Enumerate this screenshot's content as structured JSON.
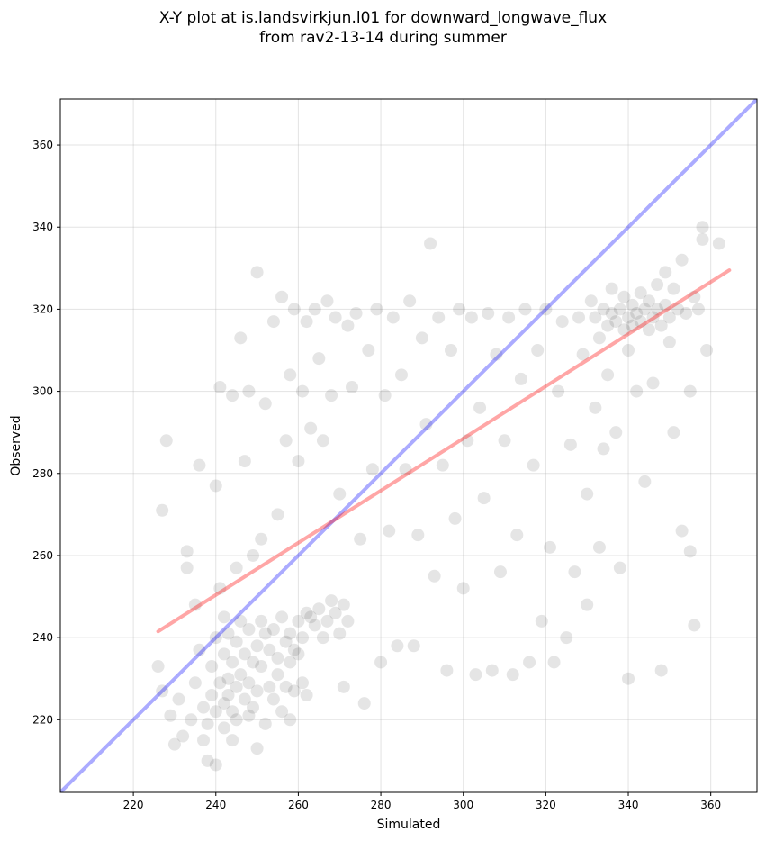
{
  "chart_data": {
    "type": "scatter",
    "title": [
      "X-Y plot at is.landsvirkjun.l01 for downward_longwave_flux",
      "from rav2-13-14 during summer"
    ],
    "xlabel": "Simulated",
    "ylabel": "Observed",
    "xlim": [
      202.3,
      371.2
    ],
    "ylim": [
      202.3,
      371.2
    ],
    "xticks": [
      220,
      240,
      260,
      280,
      300,
      320,
      340,
      360
    ],
    "yticks": [
      220,
      240,
      260,
      280,
      300,
      320,
      340,
      360
    ],
    "grid": true,
    "colors": {
      "points": "#000000",
      "identity": "#0000ff",
      "fit": "#ff0000",
      "grid": "#b0b0b0"
    },
    "identity_line": {
      "name": "1:1 line",
      "x": [
        202.3,
        371.2
      ],
      "y": [
        202.3,
        371.2
      ]
    },
    "fit_line": {
      "name": "linear fit",
      "x": [
        226,
        364.5
      ],
      "y": [
        241.5,
        329.5
      ]
    },
    "points": [
      [
        226,
        233
      ],
      [
        227,
        227
      ],
      [
        227,
        271
      ],
      [
        228,
        288
      ],
      [
        229,
        221
      ],
      [
        230,
        214
      ],
      [
        231,
        225
      ],
      [
        232,
        216
      ],
      [
        233,
        257
      ],
      [
        233,
        261
      ],
      [
        234,
        220
      ],
      [
        235,
        229
      ],
      [
        235,
        248
      ],
      [
        236,
        237
      ],
      [
        236,
        282
      ],
      [
        237,
        223
      ],
      [
        237,
        215
      ],
      [
        238,
        210
      ],
      [
        238,
        219
      ],
      [
        239,
        226
      ],
      [
        239,
        233
      ],
      [
        240,
        240
      ],
      [
        240,
        222
      ],
      [
        240,
        209
      ],
      [
        240,
        277
      ],
      [
        241,
        301
      ],
      [
        241,
        252
      ],
      [
        241,
        229
      ],
      [
        242,
        224
      ],
      [
        242,
        236
      ],
      [
        242,
        218
      ],
      [
        242,
        245
      ],
      [
        243,
        226
      ],
      [
        243,
        241
      ],
      [
        243,
        230
      ],
      [
        244,
        222
      ],
      [
        244,
        234
      ],
      [
        244,
        215
      ],
      [
        244,
        299
      ],
      [
        245,
        228
      ],
      [
        245,
        239
      ],
      [
        245,
        257
      ],
      [
        245,
        220
      ],
      [
        246,
        313
      ],
      [
        246,
        244
      ],
      [
        246,
        231
      ],
      [
        247,
        225
      ],
      [
        247,
        236
      ],
      [
        247,
        283
      ],
      [
        248,
        221
      ],
      [
        248,
        229
      ],
      [
        248,
        242
      ],
      [
        248,
        300
      ],
      [
        249,
        234
      ],
      [
        249,
        223
      ],
      [
        249,
        260
      ],
      [
        250,
        213
      ],
      [
        250,
        238
      ],
      [
        250,
        227
      ],
      [
        250,
        329
      ],
      [
        251,
        244
      ],
      [
        251,
        233
      ],
      [
        251,
        264
      ],
      [
        252,
        219
      ],
      [
        252,
        241
      ],
      [
        252,
        297
      ],
      [
        253,
        228
      ],
      [
        253,
        237
      ],
      [
        254,
        225
      ],
      [
        254,
        242
      ],
      [
        254,
        317
      ],
      [
        255,
        235
      ],
      [
        255,
        231
      ],
      [
        255,
        270
      ],
      [
        256,
        222
      ],
      [
        256,
        245
      ],
      [
        256,
        323
      ],
      [
        257,
        239
      ],
      [
        257,
        228
      ],
      [
        257,
        288
      ],
      [
        258,
        241
      ],
      [
        258,
        234
      ],
      [
        258,
        220
      ],
      [
        258,
        304
      ],
      [
        259,
        237
      ],
      [
        259,
        227
      ],
      [
        259,
        320
      ],
      [
        260,
        244
      ],
      [
        260,
        236
      ],
      [
        260,
        283
      ],
      [
        261,
        229
      ],
      [
        261,
        240
      ],
      [
        261,
        300
      ],
      [
        262,
        246
      ],
      [
        262,
        317
      ],
      [
        262,
        226
      ],
      [
        263,
        245
      ],
      [
        263,
        291
      ],
      [
        264,
        243
      ],
      [
        264,
        320
      ],
      [
        265,
        247
      ],
      [
        265,
        308
      ],
      [
        266,
        240
      ],
      [
        266,
        288
      ],
      [
        267,
        244
      ],
      [
        267,
        322
      ],
      [
        268,
        249
      ],
      [
        268,
        299
      ],
      [
        269,
        246
      ],
      [
        269,
        318
      ],
      [
        270,
        241
      ],
      [
        270,
        275
      ],
      [
        271,
        248
      ],
      [
        271,
        228
      ],
      [
        272,
        244
      ],
      [
        272,
        316
      ],
      [
        273,
        301
      ],
      [
        274,
        319
      ],
      [
        275,
        264
      ],
      [
        276,
        224
      ],
      [
        277,
        310
      ],
      [
        278,
        281
      ],
      [
        279,
        320
      ],
      [
        280,
        234
      ],
      [
        281,
        299
      ],
      [
        282,
        266
      ],
      [
        283,
        318
      ],
      [
        284,
        238
      ],
      [
        285,
        304
      ],
      [
        286,
        281
      ],
      [
        287,
        322
      ],
      [
        288,
        238
      ],
      [
        289,
        265
      ],
      [
        290,
        313
      ],
      [
        291,
        292
      ],
      [
        292,
        336
      ],
      [
        293,
        255
      ],
      [
        294,
        318
      ],
      [
        295,
        282
      ],
      [
        296,
        232
      ],
      [
        297,
        310
      ],
      [
        298,
        269
      ],
      [
        299,
        320
      ],
      [
        300,
        252
      ],
      [
        301,
        288
      ],
      [
        302,
        318
      ],
      [
        303,
        231
      ],
      [
        304,
        296
      ],
      [
        305,
        274
      ],
      [
        306,
        319
      ],
      [
        307,
        232
      ],
      [
        308,
        309
      ],
      [
        309,
        256
      ],
      [
        310,
        288
      ],
      [
        311,
        318
      ],
      [
        312,
        231
      ],
      [
        313,
        265
      ],
      [
        314,
        303
      ],
      [
        315,
        320
      ],
      [
        316,
        234
      ],
      [
        317,
        282
      ],
      [
        318,
        310
      ],
      [
        319,
        244
      ],
      [
        320,
        320
      ],
      [
        321,
        262
      ],
      [
        322,
        234
      ],
      [
        323,
        300
      ],
      [
        324,
        317
      ],
      [
        325,
        240
      ],
      [
        326,
        287
      ],
      [
        327,
        256
      ],
      [
        328,
        318
      ],
      [
        329,
        309
      ],
      [
        330,
        248
      ],
      [
        330,
        275
      ],
      [
        331,
        322
      ],
      [
        332,
        296
      ],
      [
        332,
        318
      ],
      [
        333,
        262
      ],
      [
        333,
        313
      ],
      [
        334,
        320
      ],
      [
        334,
        286
      ],
      [
        335,
        316
      ],
      [
        335,
        304
      ],
      [
        336,
        319
      ],
      [
        336,
        325
      ],
      [
        337,
        317
      ],
      [
        337,
        290
      ],
      [
        338,
        320
      ],
      [
        338,
        257
      ],
      [
        339,
        315
      ],
      [
        339,
        323
      ],
      [
        340,
        318
      ],
      [
        340,
        310
      ],
      [
        340,
        230
      ],
      [
        341,
        321
      ],
      [
        341,
        316
      ],
      [
        342,
        319
      ],
      [
        342,
        300
      ],
      [
        343,
        324
      ],
      [
        343,
        317
      ],
      [
        344,
        320
      ],
      [
        344,
        278
      ],
      [
        345,
        315
      ],
      [
        345,
        322
      ],
      [
        346,
        318
      ],
      [
        346,
        302
      ],
      [
        347,
        326
      ],
      [
        347,
        320
      ],
      [
        348,
        316
      ],
      [
        348,
        232
      ],
      [
        349,
        321
      ],
      [
        349,
        329
      ],
      [
        350,
        318
      ],
      [
        350,
        312
      ],
      [
        351,
        290
      ],
      [
        351,
        325
      ],
      [
        352,
        320
      ],
      [
        353,
        266
      ],
      [
        353,
        332
      ],
      [
        354,
        319
      ],
      [
        355,
        300
      ],
      [
        355,
        261
      ],
      [
        356,
        323
      ],
      [
        356,
        243
      ],
      [
        357,
        320
      ],
      [
        358,
        337
      ],
      [
        358,
        340
      ],
      [
        359,
        310
      ],
      [
        362,
        336
      ]
    ]
  }
}
